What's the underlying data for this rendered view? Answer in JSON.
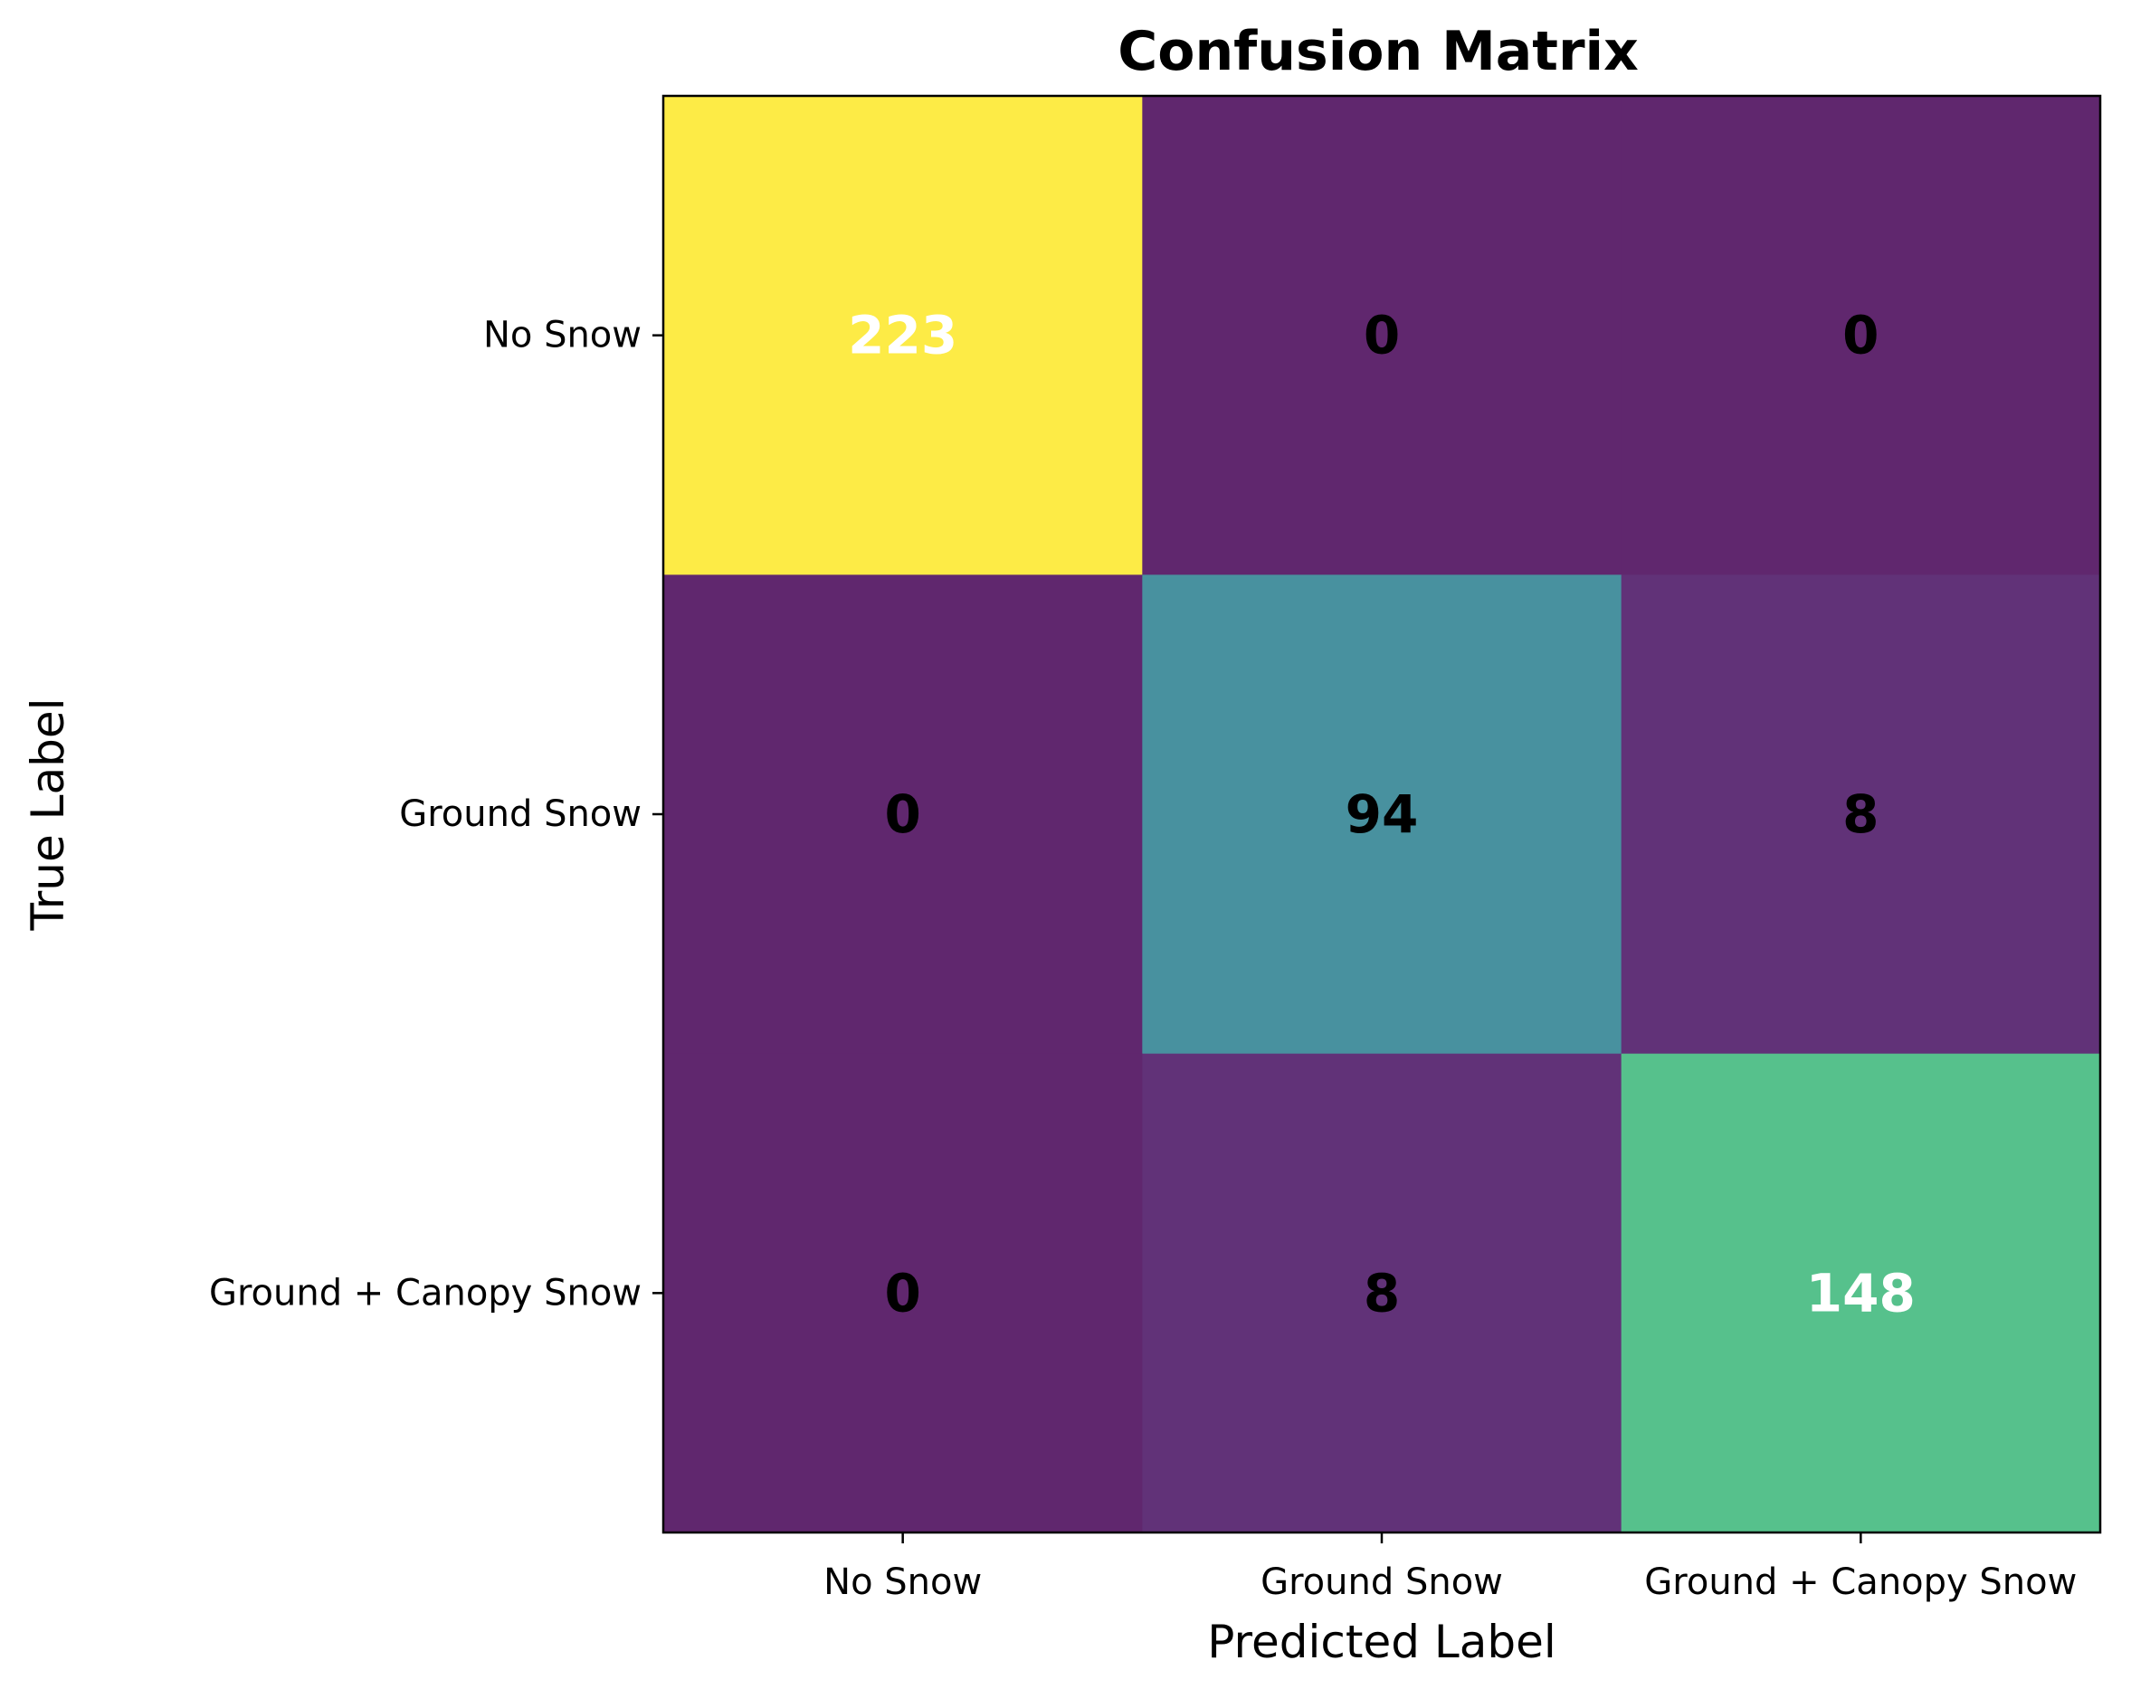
{
  "chart_data": {
    "type": "heatmap",
    "title": "Confusion Matrix",
    "xlabel": "Predicted Label",
    "ylabel": "True Label",
    "x_categories": [
      "No Snow",
      "Ground Snow",
      "Ground + Canopy Snow"
    ],
    "y_categories": [
      "No Snow",
      "Ground Snow",
      "Ground + Canopy Snow"
    ],
    "values": [
      [
        223,
        0,
        0
      ],
      [
        0,
        94,
        8
      ],
      [
        0,
        8,
        148
      ]
    ],
    "colormap": "viridis",
    "value_range": [
      0,
      223
    ],
    "colors": {
      "text_light": "#ffffff",
      "text_dark": "#000000"
    }
  }
}
